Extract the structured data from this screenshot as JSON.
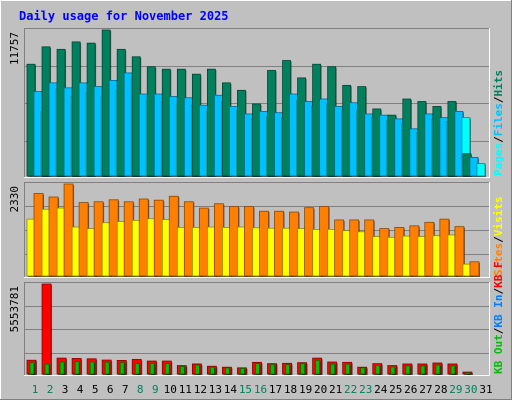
{
  "title": "Daily usage for November 2025",
  "colors": {
    "background": "#c0c0c0",
    "title": "#0000ff",
    "hits": "#00805c",
    "files": "#00c0ff",
    "pages": "#00ffff",
    "visits": "#ffff00",
    "sites": "#ff8000",
    "kb_in": "#0080ff",
    "kb_out": "#00c000",
    "kb_f": "#ff0000",
    "weekend_label": "#00805c",
    "weekday_label": "#000000"
  },
  "chart_data": [
    {
      "type": "bar",
      "name": "hits-files-pages",
      "axis_max_label": "11757",
      "ylim": [
        0,
        11757
      ],
      "legend": [
        {
          "label": "Hits",
          "color": "#00805c"
        },
        {
          "label": "Files",
          "color": "#00c0ff"
        },
        {
          "label": "Pages",
          "color": "#00ffff"
        }
      ],
      "categories": [
        "1",
        "2",
        "3",
        "4",
        "5",
        "6",
        "7",
        "8",
        "9",
        "10",
        "11",
        "12",
        "13",
        "14",
        "15",
        "16",
        "17",
        "18",
        "19",
        "20",
        "21",
        "22",
        "23",
        "24",
        "25",
        "26",
        "27",
        "28",
        "29",
        "30",
        "31"
      ],
      "series": [
        {
          "name": "Hits",
          "values": [
            9000,
            10400,
            10200,
            10800,
            10700,
            11757,
            10200,
            9600,
            8800,
            8600,
            8600,
            8200,
            8600,
            7500,
            6900,
            5800,
            8500,
            9300,
            7900,
            9000,
            8800,
            7300,
            7200,
            5400,
            4900,
            6200,
            6000,
            5600,
            6000,
            1800,
            0
          ]
        },
        {
          "name": "Files",
          "values": [
            6800,
            7500,
            7100,
            7500,
            7200,
            7700,
            8300,
            6600,
            6600,
            6400,
            6300,
            5700,
            6500,
            5600,
            5000,
            5200,
            5100,
            6600,
            6000,
            6200,
            5600,
            5900,
            5000,
            4900,
            4600,
            3800,
            5000,
            4700,
            5200,
            1500,
            0
          ]
        },
        {
          "name": "Pages",
          "values": [
            5200,
            7000,
            6400,
            6700,
            6400,
            6900,
            7800,
            6100,
            6000,
            5800,
            5700,
            5200,
            6000,
            5300,
            4600,
            4800,
            4700,
            6100,
            5600,
            5800,
            5300,
            5300,
            4700,
            4500,
            4200,
            3500,
            4600,
            4400,
            4700,
            1000,
            0
          ]
        }
      ]
    },
    {
      "type": "bar",
      "name": "visits-sites",
      "axis_max_label": "2330",
      "ylim": [
        0,
        2330
      ],
      "legend": [
        {
          "label": "Visits",
          "color": "#ffff00"
        },
        {
          "label": "Sites",
          "color": "#ff8000"
        }
      ],
      "categories": [
        "1",
        "2",
        "3",
        "4",
        "5",
        "6",
        "7",
        "8",
        "9",
        "10",
        "11",
        "12",
        "13",
        "14",
        "15",
        "16",
        "17",
        "18",
        "19",
        "20",
        "21",
        "22",
        "23",
        "24",
        "25",
        "26",
        "27",
        "28",
        "29",
        "30",
        "31"
      ],
      "series": [
        {
          "name": "Visits",
          "values": [
            1440,
            1690,
            1720,
            1240,
            1200,
            1350,
            1380,
            1410,
            1450,
            1430,
            1230,
            1230,
            1240,
            1230,
            1240,
            1220,
            1210,
            1210,
            1200,
            1180,
            1180,
            1150,
            1120,
            1000,
            980,
            1010,
            1000,
            1020,
            1040,
            300,
            0
          ]
        },
        {
          "name": "Sites",
          "values": [
            2090,
            2000,
            2330,
            1860,
            1880,
            1930,
            1880,
            1950,
            1920,
            2020,
            1880,
            1720,
            1830,
            1760,
            1760,
            1640,
            1640,
            1620,
            1730,
            1760,
            1420,
            1420,
            1420,
            1200,
            1230,
            1270,
            1360,
            1440,
            1250,
            360,
            0
          ]
        }
      ]
    },
    {
      "type": "bar",
      "name": "kb",
      "axis_max_label": "5553781",
      "ylim": [
        0,
        5553781
      ],
      "legend": [
        {
          "label": "KB F",
          "color": "#ff0000"
        },
        {
          "label": "KB In",
          "color": "#0080ff"
        },
        {
          "label": "KB Out",
          "color": "#00c000"
        }
      ],
      "categories": [
        "1",
        "2",
        "3",
        "4",
        "5",
        "6",
        "7",
        "8",
        "9",
        "10",
        "11",
        "12",
        "13",
        "14",
        "15",
        "16",
        "17",
        "18",
        "19",
        "20",
        "21",
        "22",
        "23",
        "24",
        "25",
        "26",
        "27",
        "28",
        "29",
        "30",
        "31"
      ],
      "series": [
        {
          "name": "KB F",
          "values": [
            850000,
            5553781,
            980000,
            960000,
            940000,
            860000,
            840000,
            900000,
            800000,
            800000,
            520000,
            620000,
            480000,
            420000,
            380000,
            720000,
            640000,
            660000,
            700000,
            980000,
            740000,
            720000,
            420000,
            640000,
            520000,
            620000,
            620000,
            680000,
            620000,
            120000,
            0
          ]
        },
        {
          "name": "KB Out",
          "values": [
            700000,
            600000,
            740000,
            760000,
            740000,
            720000,
            700000,
            640000,
            660000,
            640000,
            460000,
            560000,
            420000,
            370000,
            340000,
            640000,
            580000,
            580000,
            640000,
            840000,
            600000,
            600000,
            380000,
            540000,
            440000,
            500000,
            500000,
            560000,
            500000,
            80000,
            0
          ]
        },
        {
          "name": "KB In",
          "values": [
            0,
            0,
            0,
            0,
            0,
            0,
            0,
            0,
            0,
            0,
            0,
            0,
            0,
            0,
            0,
            0,
            0,
            0,
            0,
            0,
            0,
            0,
            0,
            0,
            0,
            0,
            0,
            0,
            0,
            0,
            0
          ]
        }
      ]
    }
  ],
  "x_axis": {
    "labels": [
      "1",
      "2",
      "3",
      "4",
      "5",
      "6",
      "7",
      "8",
      "9",
      "10",
      "11",
      "12",
      "13",
      "14",
      "15",
      "16",
      "17",
      "18",
      "19",
      "20",
      "21",
      "22",
      "23",
      "24",
      "25",
      "26",
      "27",
      "28",
      "29",
      "30",
      "31"
    ],
    "weekend": [
      true,
      true,
      false,
      false,
      false,
      false,
      false,
      true,
      true,
      false,
      false,
      false,
      false,
      false,
      true,
      true,
      false,
      false,
      false,
      false,
      false,
      true,
      true,
      false,
      false,
      false,
      false,
      false,
      true,
      true,
      false
    ]
  }
}
